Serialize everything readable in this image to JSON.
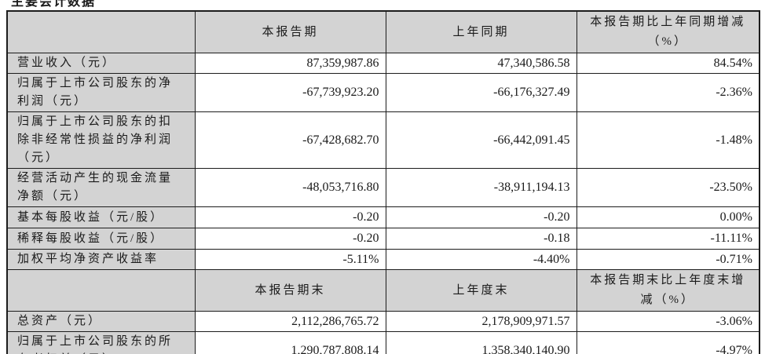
{
  "page": {
    "clipped_heading": "主要会计数据"
  },
  "colors": {
    "cell_fill": "#d3d3d3",
    "border": "#1c1c1c",
    "text": "#1a1a1a"
  },
  "table": {
    "header1": {
      "c1": "",
      "c2": "本报告期",
      "c3": "上年同期",
      "c4": "本报告期比上年同期增减（%）"
    },
    "rows1": [
      {
        "label": "营业收入（元）",
        "current": "87,359,987.86",
        "prior": "47,340,586.58",
        "change": "84.54%"
      },
      {
        "label": "归属于上市公司股东的净利润（元）",
        "current": "-67,739,923.20",
        "prior": "-66,176,327.49",
        "change": "-2.36%"
      },
      {
        "label": "归属于上市公司股东的扣除非经常性损益的净利润（元）",
        "current": "-67,428,682.70",
        "prior": "-66,442,091.45",
        "change": "-1.48%"
      },
      {
        "label": "经营活动产生的现金流量净额（元）",
        "current": "-48,053,716.80",
        "prior": "-38,911,194.13",
        "change": "-23.50%"
      },
      {
        "label": "基本每股收益（元/股）",
        "current": "-0.20",
        "prior": "-0.20",
        "change": "0.00%"
      },
      {
        "label": "稀释每股收益（元/股）",
        "current": "-0.20",
        "prior": "-0.18",
        "change": "-11.11%"
      },
      {
        "label": "加权平均净资产收益率",
        "current": "-5.11%",
        "prior": "-4.40%",
        "change": "-0.71%"
      }
    ],
    "header2": {
      "c1": "",
      "c2": "本报告期末",
      "c3": "上年度末",
      "c4": "本报告期末比上年度末增减（%）"
    },
    "rows2": [
      {
        "label": "总资产（元）",
        "current": "2,112,286,765.72",
        "prior": "2,178,909,971.57",
        "change": "-3.06%"
      },
      {
        "label": "归属于上市公司股东的所有者权益（元）",
        "current": "1,290,787,808.14",
        "prior": "1,358,340,140.90",
        "change": "-4.97%"
      }
    ]
  }
}
